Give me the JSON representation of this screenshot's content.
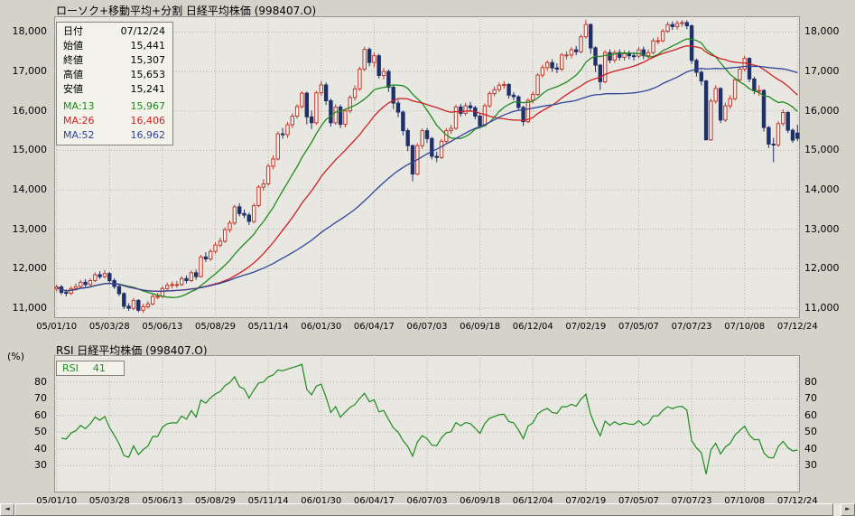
{
  "ui": {
    "colors": {
      "window_bg": "#d5d2c9",
      "plot_bg": "#e9e7e1",
      "frame": "#93928a",
      "grid": "#b4b3aa",
      "text": "#000000"
    },
    "scrollbar": {
      "left_arrow": "◄",
      "right_arrow": "►"
    }
  },
  "top_chart": {
    "info_box": {
      "rows": [
        [
          "日付",
          "07/12/24"
        ],
        [
          "始値",
          "15,441"
        ],
        [
          "終値",
          "15,307"
        ],
        [
          "高値",
          "15,653"
        ],
        [
          "安値",
          "15,241"
        ]
      ]
    }
  },
  "chart_data": [
    {
      "type": "candlestick",
      "title": "ローソク+移動平均+分割 日経平均株価 (998407.O)",
      "interval": "weekly",
      "ylim": [
        10750,
        18400
      ],
      "y_ticks": [
        {
          "v": 11000,
          "label": "11,000"
        },
        {
          "v": 12000,
          "label": "12,000"
        },
        {
          "v": 13000,
          "label": "13,000"
        },
        {
          "v": 14000,
          "label": "14,000"
        },
        {
          "v": 15000,
          "label": "15,000"
        },
        {
          "v": 16000,
          "label": "16,000"
        },
        {
          "v": 17000,
          "label": "17,000"
        },
        {
          "v": 18000,
          "label": "18,000"
        }
      ],
      "x_tick_labels": [
        "05/01/10",
        "05/03/28",
        "05/06/13",
        "05/08/29",
        "05/11/14",
        "06/01/30",
        "06/04/17",
        "06/07/03",
        "06/09/18",
        "06/12/04",
        "07/02/19",
        "07/05/07",
        "07/07/23",
        "07/10/08",
        "07/12/24"
      ],
      "x_tick_indices": [
        0,
        11,
        22,
        33,
        44,
        55,
        66,
        77,
        88,
        99,
        110,
        121,
        132,
        143,
        154
      ],
      "up_color": "#c0392b",
      "down_color": "#1f3069",
      "up_fill": "#f4f3ed",
      "overlays": [
        {
          "label": "MA:13",
          "period": 13,
          "color": "#1e8c1e",
          "value": "15,967"
        },
        {
          "label": "MA:26",
          "period": 26,
          "color": "#cc2222",
          "value": "16,406"
        },
        {
          "label": "MA:52",
          "period": 52,
          "color": "#2f4699",
          "value": "16,962"
        }
      ],
      "candles": [
        [
          11490,
          11600,
          11420,
          11540
        ],
        [
          11540,
          11590,
          11340,
          11400
        ],
        [
          11400,
          11480,
          11300,
          11380
        ],
        [
          11380,
          11560,
          11330,
          11500
        ],
        [
          11500,
          11630,
          11450,
          11550
        ],
        [
          11550,
          11720,
          11500,
          11660
        ],
        [
          11660,
          11740,
          11540,
          11600
        ],
        [
          11600,
          11760,
          11550,
          11700
        ],
        [
          11700,
          11910,
          11660,
          11850
        ],
        [
          11850,
          11940,
          11740,
          11800
        ],
        [
          11800,
          11970,
          11750,
          11880
        ],
        [
          11880,
          11920,
          11640,
          11700
        ],
        [
          11700,
          11760,
          11490,
          11550
        ],
        [
          11550,
          11600,
          11310,
          11370
        ],
        [
          11370,
          11410,
          10980,
          11050
        ],
        [
          11050,
          11130,
          10930,
          11000
        ],
        [
          11000,
          11260,
          10950,
          11200
        ],
        [
          11200,
          11230,
          10900,
          10950
        ],
        [
          10950,
          11110,
          10880,
          11040
        ],
        [
          11040,
          11180,
          10990,
          11110
        ],
        [
          11110,
          11360,
          11070,
          11300
        ],
        [
          11300,
          11390,
          11230,
          11300
        ],
        [
          11300,
          11560,
          11260,
          11500
        ],
        [
          11500,
          11650,
          11440,
          11580
        ],
        [
          11580,
          11680,
          11500,
          11600
        ],
        [
          11600,
          11690,
          11520,
          11600
        ],
        [
          11600,
          11810,
          11560,
          11750
        ],
        [
          11750,
          11830,
          11630,
          11700
        ],
        [
          11700,
          11960,
          11660,
          11900
        ],
        [
          11900,
          11980,
          11720,
          11800
        ],
        [
          11800,
          12350,
          11780,
          12300
        ],
        [
          12300,
          12420,
          12170,
          12250
        ],
        [
          12250,
          12500,
          12200,
          12440
        ],
        [
          12440,
          12670,
          12380,
          12600
        ],
        [
          12600,
          12790,
          12540,
          12700
        ],
        [
          12700,
          13050,
          12650,
          12990
        ],
        [
          12990,
          13230,
          12920,
          13160
        ],
        [
          13160,
          13620,
          13110,
          13570
        ],
        [
          13570,
          13660,
          13330,
          13400
        ],
        [
          13400,
          13500,
          13280,
          13360
        ],
        [
          13360,
          13420,
          13110,
          13200
        ],
        [
          13200,
          13660,
          13150,
          13600
        ],
        [
          13600,
          14120,
          13560,
          14070
        ],
        [
          14070,
          14270,
          13980,
          14150
        ],
        [
          14150,
          14660,
          14100,
          14600
        ],
        [
          14600,
          14880,
          14520,
          14780
        ],
        [
          14780,
          15480,
          14750,
          15420
        ],
        [
          15420,
          15570,
          15300,
          15400
        ],
        [
          15400,
          15720,
          15320,
          15650
        ],
        [
          15650,
          15940,
          15570,
          15870
        ],
        [
          15870,
          16170,
          15800,
          16110
        ],
        [
          16110,
          16500,
          16060,
          16450
        ],
        [
          16450,
          16490,
          15660,
          15850
        ],
        [
          15850,
          16010,
          15540,
          15700
        ],
        [
          15700,
          16510,
          15650,
          16460
        ],
        [
          16460,
          16760,
          16380,
          16660
        ],
        [
          16660,
          16720,
          16150,
          16260
        ],
        [
          16260,
          16310,
          15600,
          15700
        ],
        [
          15700,
          16170,
          15650,
          16100
        ],
        [
          16100,
          16160,
          15570,
          15660
        ],
        [
          15660,
          16070,
          15580,
          16000
        ],
        [
          16000,
          16400,
          15940,
          16340
        ],
        [
          16340,
          16650,
          16260,
          16560
        ],
        [
          16560,
          17120,
          16510,
          17060
        ],
        [
          17060,
          17630,
          17010,
          17560
        ],
        [
          17560,
          17610,
          17130,
          17230
        ],
        [
          17230,
          17480,
          17110,
          17400
        ],
        [
          17400,
          17450,
          16820,
          16900
        ],
        [
          16900,
          17090,
          16800,
          17000
        ],
        [
          17000,
          17050,
          16480,
          16600
        ],
        [
          16600,
          16650,
          16050,
          16200
        ],
        [
          16200,
          16280,
          15840,
          15970
        ],
        [
          15970,
          16010,
          15380,
          15500
        ],
        [
          15500,
          15560,
          14980,
          15120
        ],
        [
          15120,
          15150,
          14220,
          14400
        ],
        [
          14400,
          15180,
          14370,
          15120
        ],
        [
          15120,
          15560,
          15040,
          15500
        ],
        [
          15500,
          15570,
          15190,
          15300
        ],
        [
          15300,
          15340,
          14770,
          14850
        ],
        [
          14850,
          14970,
          14700,
          14820
        ],
        [
          14820,
          15290,
          14780,
          15230
        ],
        [
          15230,
          15570,
          15160,
          15500
        ],
        [
          15500,
          15650,
          15420,
          15560
        ],
        [
          15560,
          16160,
          15520,
          16100
        ],
        [
          16100,
          16180,
          15860,
          15940
        ],
        [
          15940,
          16210,
          15880,
          16130
        ],
        [
          16130,
          16230,
          15990,
          16080
        ],
        [
          16080,
          16130,
          15790,
          15870
        ],
        [
          15870,
          15920,
          15550,
          15630
        ],
        [
          15630,
          16190,
          15600,
          16130
        ],
        [
          16130,
          16500,
          16080,
          16440
        ],
        [
          16440,
          16620,
          16370,
          16540
        ],
        [
          16540,
          16720,
          16480,
          16650
        ],
        [
          16650,
          16760,
          16560,
          16670
        ],
        [
          16670,
          16710,
          16310,
          16400
        ],
        [
          16400,
          16480,
          16270,
          16360
        ],
        [
          16360,
          16400,
          16010,
          16090
        ],
        [
          16090,
          16130,
          15620,
          15730
        ],
        [
          15730,
          16320,
          15690,
          16270
        ],
        [
          16270,
          16500,
          16190,
          16420
        ],
        [
          16420,
          16960,
          16380,
          16910
        ],
        [
          16910,
          17170,
          16840,
          17100
        ],
        [
          17100,
          17280,
          17020,
          17225
        ],
        [
          17225,
          17310,
          16990,
          17090
        ],
        [
          17090,
          17210,
          16960,
          17060
        ],
        [
          17060,
          17470,
          17010,
          17420
        ],
        [
          17420,
          17510,
          17310,
          17420
        ],
        [
          17420,
          17620,
          17340,
          17550
        ],
        [
          17550,
          17650,
          17410,
          17500
        ],
        [
          17500,
          17940,
          17460,
          17880
        ],
        [
          17880,
          18300,
          17830,
          18190
        ],
        [
          18190,
          18220,
          17450,
          17600
        ],
        [
          17600,
          17640,
          16990,
          17160
        ],
        [
          17160,
          17190,
          16530,
          16740
        ],
        [
          16740,
          17540,
          16700,
          17480
        ],
        [
          17480,
          17560,
          17210,
          17290
        ],
        [
          17290,
          17540,
          17220,
          17480
        ],
        [
          17480,
          17560,
          17280,
          17360
        ],
        [
          17360,
          17540,
          17270,
          17450
        ],
        [
          17450,
          17530,
          17310,
          17400
        ],
        [
          17400,
          17490,
          17280,
          17390
        ],
        [
          17390,
          17620,
          17330,
          17550
        ],
        [
          17550,
          17630,
          17310,
          17400
        ],
        [
          17400,
          17560,
          17330,
          17480
        ],
        [
          17480,
          17840,
          17440,
          17780
        ],
        [
          17780,
          17880,
          17690,
          17780
        ],
        [
          17780,
          18080,
          17740,
          18020
        ],
        [
          18020,
          18260,
          17980,
          18190
        ],
        [
          18190,
          18270,
          18050,
          18140
        ],
        [
          18140,
          18290,
          18060,
          18220
        ],
        [
          18220,
          18300,
          18130,
          18240
        ],
        [
          18240,
          18300,
          18070,
          18160
        ],
        [
          18160,
          18190,
          17190,
          17280
        ],
        [
          17280,
          17330,
          16870,
          16980
        ],
        [
          16980,
          17030,
          16650,
          16760
        ],
        [
          16760,
          16790,
          15260,
          15270
        ],
        [
          15270,
          16310,
          15240,
          16250
        ],
        [
          16250,
          16650,
          16180,
          16570
        ],
        [
          16570,
          16600,
          15690,
          15770
        ],
        [
          15770,
          16210,
          15720,
          16130
        ],
        [
          16130,
          16400,
          16050,
          16310
        ],
        [
          16310,
          16850,
          16270,
          16790
        ],
        [
          16790,
          17120,
          16740,
          17060
        ],
        [
          17060,
          17400,
          17000,
          17330
        ],
        [
          17330,
          17360,
          16730,
          16810
        ],
        [
          16810,
          16870,
          16420,
          16510
        ],
        [
          16510,
          16650,
          16380,
          16520
        ],
        [
          16520,
          16550,
          15480,
          15580
        ],
        [
          15580,
          15620,
          15060,
          15160
        ],
        [
          15160,
          15320,
          14700,
          15140
        ],
        [
          15140,
          15740,
          15090,
          15680
        ],
        [
          15680,
          16040,
          15620,
          15960
        ],
        [
          15960,
          15990,
          15440,
          15510
        ],
        [
          15510,
          15560,
          15190,
          15260
        ],
        [
          15441,
          15653,
          15241,
          15307
        ]
      ]
    },
    {
      "type": "line",
      "title": "RSI 日経平均株価 (998407.O)",
      "ylabel": "(%)",
      "ylim": [
        14,
        96
      ],
      "y_ticks": [
        {
          "v": 30,
          "label": "30"
        },
        {
          "v": 40,
          "label": "40"
        },
        {
          "v": 50,
          "label": "50"
        },
        {
          "v": 60,
          "label": "60"
        },
        {
          "v": 70,
          "label": "70"
        },
        {
          "v": 80,
          "label": "80"
        }
      ],
      "x_tick_labels": [
        "05/01/10",
        "05/03/28",
        "05/06/13",
        "05/08/29",
        "05/11/14",
        "06/01/30",
        "06/04/17",
        "06/07/03",
        "06/09/18",
        "06/12/04",
        "07/02/19",
        "07/05/07",
        "07/07/23",
        "07/10/08",
        "07/12/24"
      ],
      "x_tick_indices": [
        0,
        11,
        22,
        33,
        44,
        55,
        66,
        77,
        88,
        99,
        110,
        121,
        132,
        143,
        154
      ],
      "series": [
        {
          "name": "RSI",
          "period": 14,
          "color": "#1e8c1e",
          "last_value": 41,
          "derived_from": "RSI(14) of candlestick closes"
        }
      ]
    }
  ]
}
